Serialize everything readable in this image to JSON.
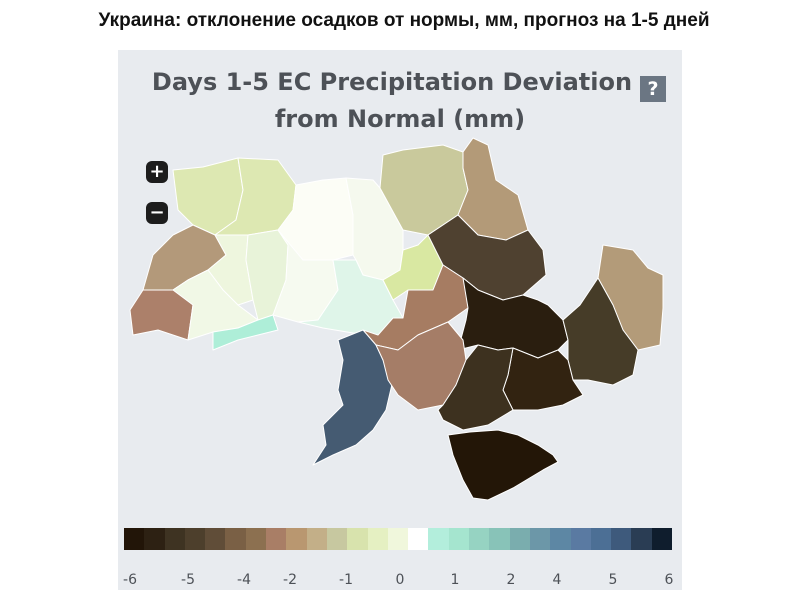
{
  "heading": "Украина: отклонение осадков от нормы, мм, прогноз на 1-5 дней",
  "map": {
    "title_line1": "Days 1-5 EC Precipitation Deviation",
    "title_line2": "from Normal (mm)",
    "help_label": "?",
    "zoom_in_label": "+",
    "zoom_out_label": "−"
  },
  "legend": {
    "ticks": [
      "-6",
      "-5",
      "-4",
      "-2",
      "-1",
      "0",
      "1",
      "2",
      "4",
      "5",
      "6"
    ],
    "colors": [
      "#221508",
      "#2d2113",
      "#3e3322",
      "#4d3f2c",
      "#604d38",
      "#7a6045",
      "#8c7050",
      "#a97e66",
      "#b99770",
      "#c3af88",
      "#c7c8a0",
      "#d8e3ad",
      "#e5f0c2",
      "#f0f7dc",
      "#ffffff",
      "#b3eedc",
      "#a5e5cf",
      "#96d3c2",
      "#88c3b8",
      "#7aadae",
      "#6c97a8",
      "#5d87a4",
      "#5a7aa2",
      "#4c6f95",
      "#3e5a7c",
      "#2a3d54",
      "#0f1d2d"
    ]
  },
  "regions": [
    {
      "name": "volyn",
      "color": "#dde8b2"
    },
    {
      "name": "rivne",
      "color": "#dde8b2"
    },
    {
      "name": "zhytomyr",
      "color": "#fcfdf6"
    },
    {
      "name": "kyiv",
      "color": "#f5f9ee"
    },
    {
      "name": "chernihiv",
      "color": "#c9c99c"
    },
    {
      "name": "sumy",
      "color": "#b39a78"
    },
    {
      "name": "lviv",
      "color": "#b3997a"
    },
    {
      "name": "ternopil",
      "color": "#eef6de"
    },
    {
      "name": "khmelnytskyi",
      "color": "#e8f3d9"
    },
    {
      "name": "vinnytsia",
      "color": "#f6faf0"
    },
    {
      "name": "cherkasy",
      "color": "#dff5e9"
    },
    {
      "name": "poltava",
      "color": "#d9e8a2"
    },
    {
      "name": "kharkiv",
      "color": "#4f4130"
    },
    {
      "name": "luhansk",
      "color": "#b39b79"
    },
    {
      "name": "zakarpattia",
      "color": "#ac806a"
    },
    {
      "name": "ivano-frankivsk",
      "color": "#f1f8e6"
    },
    {
      "name": "chernivtsi",
      "color": "#aeeed8"
    },
    {
      "name": "kirovohrad",
      "color": "#a67c62"
    },
    {
      "name": "dnipro",
      "color": "#2a1e0f"
    },
    {
      "name": "donetsk",
      "color": "#463c28"
    },
    {
      "name": "odesa",
      "color": "#455b72"
    },
    {
      "name": "mykolaiv",
      "color": "#a57d67"
    },
    {
      "name": "zaporizhzhia",
      "color": "#322311"
    },
    {
      "name": "kherson",
      "color": "#3d311f"
    },
    {
      "name": "crimea",
      "color": "#231607"
    }
  ]
}
